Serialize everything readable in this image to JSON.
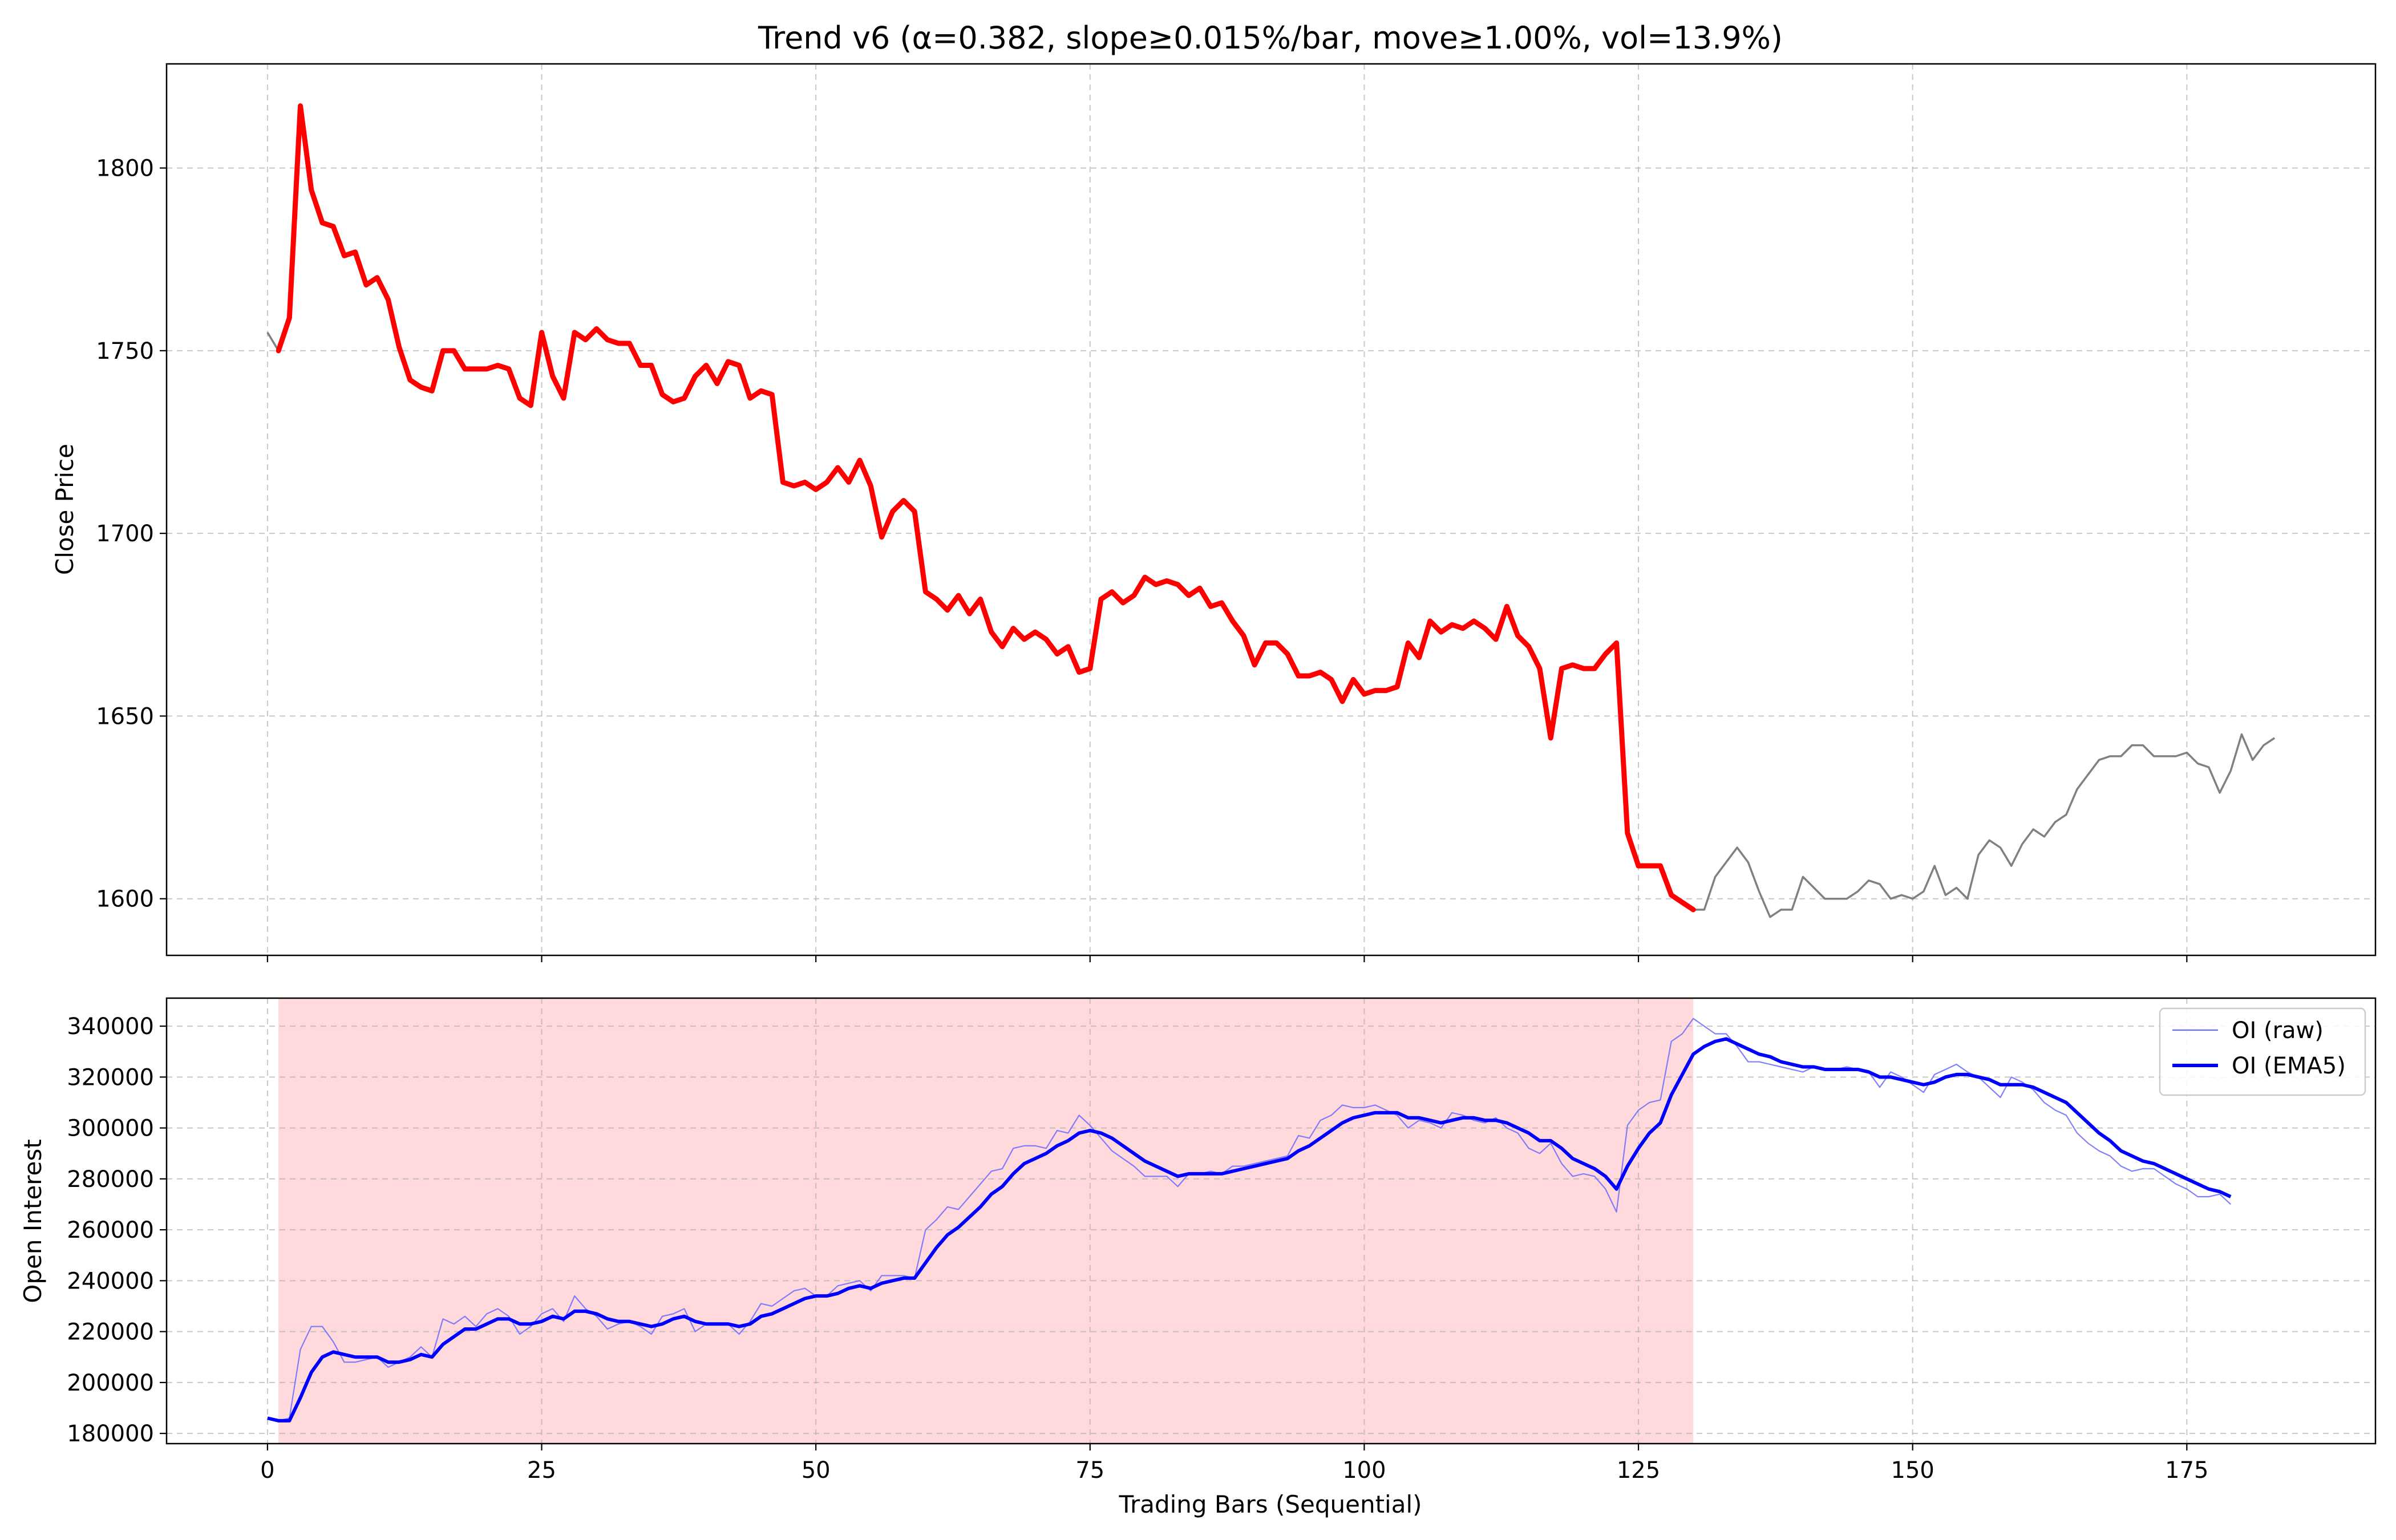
{
  "chart_data": [
    {
      "type": "line",
      "title": "Trend v6 (α=0.382, slope≥0.015%/bar, move≥1.00%, vol=13.9%)",
      "xlabel": "",
      "ylabel": "Close Price",
      "xlim": [
        -9.2,
        192.2
      ],
      "ylim": [
        1584.5,
        1828.5
      ],
      "x_ticks": [
        0,
        25,
        50,
        75,
        100,
        125,
        150,
        175
      ],
      "y_ticks": [
        1600,
        1650,
        1700,
        1750,
        1800
      ],
      "grid": true,
      "series": [
        {
          "color": "#808080",
          "x_start": 0,
          "values": [
            1755,
            1750,
            1759,
            1817,
            1794,
            1785,
            1784,
            1776,
            1777,
            1768,
            1770,
            1764,
            1751,
            1742,
            1740,
            1739,
            1750,
            1750,
            1745,
            1745,
            1745,
            1746,
            1745,
            1737,
            1735,
            1755,
            1743,
            1737,
            1755,
            1753,
            1756,
            1753,
            1752,
            1752,
            1746,
            1746,
            1738,
            1736,
            1737,
            1743,
            1746,
            1741,
            1747,
            1746,
            1737,
            1739,
            1738,
            1714,
            1713,
            1714,
            1712,
            1714,
            1718,
            1714,
            1720,
            1713,
            1699,
            1706,
            1709,
            1706,
            1684,
            1682,
            1679,
            1683,
            1678,
            1682,
            1673,
            1669,
            1674,
            1671,
            1673,
            1671,
            1667,
            1669,
            1662,
            1663,
            1682,
            1684,
            1681,
            1683,
            1688,
            1686,
            1687,
            1686,
            1683,
            1685,
            1680,
            1681,
            1676,
            1672,
            1664,
            1670,
            1670,
            1667,
            1661,
            1661,
            1662,
            1660,
            1654,
            1660,
            1656,
            1657,
            1657,
            1658,
            1670,
            1666,
            1676,
            1673,
            1675,
            1674,
            1676,
            1674,
            1671,
            1680,
            1672,
            1669,
            1663,
            1644,
            1663,
            1664,
            1663,
            1663,
            1667,
            1670,
            1618,
            1609,
            1609,
            1609,
            1601,
            1599,
            1597,
            1597,
            1606,
            1610,
            1614,
            1610,
            1602,
            1595,
            1597,
            1597,
            1606,
            1603,
            1600,
            1600,
            1600,
            1602,
            1605,
            1604,
            1600,
            1601,
            1600,
            1602,
            1609,
            1601,
            1603,
            1600,
            1612,
            1616,
            1614,
            1609,
            1615,
            1619,
            1617,
            1621,
            1623,
            1630,
            1634,
            1638,
            1639,
            1639,
            1642,
            1642,
            1639,
            1639,
            1639,
            1640,
            1637,
            1636,
            1629,
            1635,
            1645,
            1638,
            1642,
            1644
          ]
        },
        {
          "color": "#ff0000",
          "x_start": 1,
          "x_end": 130
        }
      ]
    },
    {
      "type": "line",
      "xlabel": "Trading Bars (Sequential)",
      "ylabel": "Open Interest",
      "xlim": [
        -9.2,
        192.2
      ],
      "ylim": [
        176000,
        351000
      ],
      "x_ticks": [
        0,
        25,
        50,
        75,
        100,
        125,
        150,
        175
      ],
      "y_ticks": [
        180000,
        200000,
        220000,
        240000,
        260000,
        280000,
        300000,
        320000,
        340000
      ],
      "grid": true,
      "shaded_region": {
        "x_start": 1,
        "x_end": 130,
        "color": "#ffb3b8"
      },
      "legend_position": "top-right",
      "series": [
        {
          "name": "OI (raw)",
          "color": "#6a6aff",
          "values": [
            186000,
            185000,
            186000,
            213000,
            222000,
            222000,
            216000,
            208000,
            208000,
            209000,
            210000,
            206000,
            208000,
            210000,
            214000,
            210000,
            225000,
            223000,
            226000,
            222000,
            227000,
            229000,
            226000,
            219000,
            222000,
            227000,
            229000,
            224000,
            234000,
            229000,
            226000,
            221000,
            223000,
            224000,
            222000,
            219000,
            226000,
            227000,
            229000,
            220000,
            223000,
            223000,
            223000,
            219000,
            224000,
            231000,
            230000,
            233000,
            236000,
            237000,
            234000,
            234000,
            238000,
            239000,
            240000,
            236000,
            242000,
            242000,
            242000,
            241000,
            260000,
            264000,
            269000,
            268000,
            273000,
            278000,
            283000,
            284000,
            292000,
            293000,
            293000,
            292000,
            299000,
            298000,
            305000,
            301000,
            296000,
            291000,
            288000,
            285000,
            281000,
            281000,
            281000,
            277000,
            282000,
            282000,
            283000,
            282000,
            285000,
            285000,
            286000,
            287000,
            288000,
            289000,
            297000,
            296000,
            303000,
            305000,
            309000,
            308000,
            308000,
            309000,
            307000,
            305000,
            300000,
            303000,
            302000,
            300000,
            306000,
            305000,
            303000,
            302000,
            304000,
            300000,
            298000,
            292000,
            290000,
            294000,
            286000,
            281000,
            282000,
            281000,
            276000,
            267000,
            301000,
            307000,
            310000,
            311000,
            334000,
            337000,
            343000,
            340000,
            337000,
            337000,
            332000,
            326000,
            326000,
            325000,
            324000,
            323000,
            322000,
            324000,
            323000,
            323000,
            324000,
            323000,
            322000,
            316000,
            322000,
            320000,
            317000,
            314000,
            321000,
            323000,
            325000,
            322000,
            320000,
            316000,
            312000,
            320000,
            318000,
            315000,
            310000,
            307000,
            305000,
            298000,
            294000,
            291000,
            289000,
            285000,
            283000,
            284000,
            284000,
            281000,
            278000,
            276000,
            273000,
            273000,
            274000,
            270000
          ]
        },
        {
          "name": "OI (EMA5)",
          "color": "#0000ff",
          "values": [
            186000,
            185000,
            185000,
            194000,
            204000,
            210000,
            212000,
            211000,
            210000,
            210000,
            210000,
            208000,
            208000,
            209000,
            211000,
            210000,
            215000,
            218000,
            221000,
            221000,
            223000,
            225000,
            225000,
            223000,
            223000,
            224000,
            226000,
            225000,
            228000,
            228000,
            227000,
            225000,
            224000,
            224000,
            223000,
            222000,
            223000,
            225000,
            226000,
            224000,
            223000,
            223000,
            223000,
            222000,
            223000,
            226000,
            227000,
            229000,
            231000,
            233000,
            234000,
            234000,
            235000,
            237000,
            238000,
            237000,
            239000,
            240000,
            241000,
            241000,
            247000,
            253000,
            258000,
            261000,
            265000,
            269000,
            274000,
            277000,
            282000,
            286000,
            288000,
            290000,
            293000,
            295000,
            298000,
            299000,
            298000,
            296000,
            293000,
            290000,
            287000,
            285000,
            283000,
            281000,
            282000,
            282000,
            282000,
            282000,
            283000,
            284000,
            285000,
            286000,
            287000,
            288000,
            291000,
            293000,
            296000,
            299000,
            302000,
            304000,
            305000,
            306000,
            306000,
            306000,
            304000,
            304000,
            303000,
            302000,
            303000,
            304000,
            304000,
            303000,
            303000,
            302000,
            300000,
            298000,
            295000,
            295000,
            292000,
            288000,
            286000,
            284000,
            281000,
            276000,
            285000,
            292000,
            298000,
            302000,
            313000,
            321000,
            329000,
            332000,
            334000,
            335000,
            333000,
            331000,
            329000,
            328000,
            326000,
            325000,
            324000,
            324000,
            323000,
            323000,
            323000,
            323000,
            322000,
            320000,
            320000,
            319000,
            318000,
            317000,
            318000,
            320000,
            321000,
            321000,
            320000,
            319000,
            317000,
            317000,
            317000,
            316000,
            314000,
            312000,
            310000,
            306000,
            302000,
            298000,
            295000,
            291000,
            289000,
            287000,
            286000,
            284000,
            282000,
            280000,
            278000,
            276000,
            275000,
            273000
          ]
        }
      ]
    }
  ]
}
